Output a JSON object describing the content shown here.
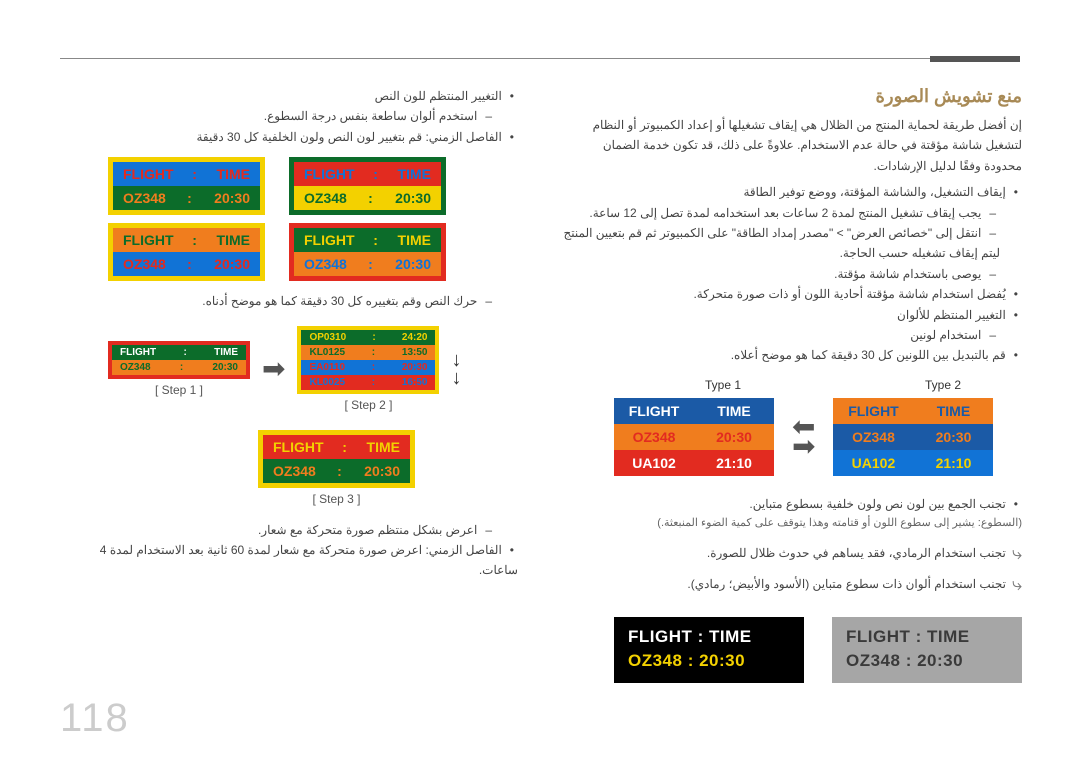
{
  "page_number": "118",
  "section_title": "منع تشويش الصورة",
  "intro": "إن أفضل طريقة لحماية المنتج من الظلال هي إيقاف تشغيلها أو إعداد الكمبيوتر أو النظام لتشغيل شاشة مؤقتة في حالة عدم الاستخدام. علاوةً على ذلك، قد تكون خدمة الضمان محدودة وفقًا لدليل الإرشادات.",
  "r_bullets": [
    "إيقاف التشغيل، والشاشة المؤقتة، ووضع توفير الطاقة",
    "يجب إيقاف تشغيل المنتج لمدة 2 ساعات بعد استخدامه لمدة تصل إلى 12 ساعة.",
    "انتقل إلى \"خصائص العرض\" > \"مصدر إمداد الطاقة\" على الكمبيوتر ثم قم بتعيين المنتج ليتم إيقاف تشغيله حسب الحاجة.",
    "يوصى باستخدام شاشة مؤقتة.",
    "يُفضل استخدام شاشة مؤقتة أحادية اللون أو ذات صورة متحركة.",
    "التغيير المنتظم للألوان",
    "استخدام لونين",
    "قم بالتبديل بين اللونين كل 30 دقيقة كما هو موضح أعلاه."
  ],
  "r_bullets_sub_flags": [
    false,
    true,
    true,
    true,
    false,
    false,
    true,
    false
  ],
  "type1_label": "Type 1",
  "type2_label": "Type 2",
  "colors": {
    "yellow": "#f3d100",
    "green_dark": "#0c6c2a",
    "orange": "#f07d1e",
    "red": "#e22b20",
    "blue_mid": "#1b5aa6",
    "blue_bright": "#1173d6",
    "blue_teal": "#1c7fb5",
    "black": "#000000",
    "white": "#ffffff",
    "gray": "#a6a6a6"
  },
  "table1": {
    "hdr_bg": "#1b5aa6",
    "hdr_txt": "#ffffff",
    "rows": [
      {
        "bg": "#f07d1e",
        "txt": "#e22b20",
        "c1": "OZ348",
        "c2": "20:30"
      },
      {
        "bg": "#e22b20",
        "txt": "#ffffff",
        "c1": "UA102",
        "c2": "21:10"
      }
    ]
  },
  "table2": {
    "hdr_bg": "#f07d1e",
    "hdr_txt": "#1b5aa6",
    "rows": [
      {
        "bg": "#1b5aa6",
        "txt": "#f07d1e",
        "c1": "OZ348",
        "c2": "20:30"
      },
      {
        "bg": "#1173d6",
        "txt": "#f3d100",
        "c1": "UA102",
        "c2": "21:10"
      }
    ]
  },
  "header_cells": {
    "c1": "FLIGHT",
    "c2": "TIME"
  },
  "bigblack": {
    "bg": "#000000",
    "txt1": "#ffffff",
    "txt2": "#f3d100",
    "l1": "FLIGHT   :   TIME",
    "l2": "OZ348   :   20:30"
  },
  "biggray": {
    "bg": "#a6a6a6",
    "txt": "#3a3a3a",
    "l1": "FLIGHT   :   TIME",
    "l2": "OZ348   :   20:30"
  },
  "note_after_types": "تجنب الجمع بين لون نص ولون خلفية بسطوع متباين.",
  "note_after_types2": "(السطوع: يشير إلى سطوع اللون أو قتامته وهذا يتوقف على كمية الضوء المنبعثة.)",
  "note_icons": [
    "تجنب استخدام الرمادي، فقد يساهم في حدوث ظلال للصورة.",
    "تجنب استخدام ألوان ذات سطوع متباين (الأسود والأبيض؛ رمادي)."
  ],
  "l_bullets": [
    "التغيير المنتظم للون النص",
    "استخدم ألوان ساطعة بنفس درجة السطوع.",
    "الفاصل الزمني: قم بتغيير لون النص ولون الخلفية كل 30 دقيقة"
  ],
  "l_bullets_sub_flags": [
    false,
    true,
    false
  ],
  "pairA": {
    "left": {
      "border": "#f3d100",
      "row1_bg": "#1173d6",
      "row1_txt": "#e22b20",
      "row2_bg": "#0c6c2a",
      "row2_txt": "#f07d1e"
    },
    "right": {
      "border": "#0c6c2a",
      "row1_bg": "#e22b20",
      "row1_txt": "#1173d6",
      "row2_bg": "#f3d100",
      "row2_txt": "#0c6c2a"
    }
  },
  "pairB": {
    "left": {
      "border": "#f3d100",
      "row1_bg": "#f07d1e",
      "row1_txt": "#0c6c2a",
      "row2_bg": "#1173d6",
      "row2_txt": "#e22b20"
    },
    "right": {
      "border": "#e22b20",
      "row1_bg": "#0c6c2a",
      "row1_txt": "#f3d100",
      "row2_bg": "#f07d1e",
      "row2_txt": "#1173d6"
    }
  },
  "flight_line": "FLIGHT   :   TIME",
  "oz_line": "OZ348   :   20:30",
  "l_mid_text": "حرك النص وقم بتغييره كل 30 دقيقة كما هو موضح أدناه.",
  "mini_left": {
    "border": "#e22b20",
    "row1_bg": "#0c6c2a",
    "row2_bg": "#f07d1e",
    "c1": "FLIGHT",
    "c2": "TIME",
    "d1": "OZ348",
    "d2": "20:30"
  },
  "mini_right_rows": [
    {
      "bg": "#0c6c2a",
      "txt": "#f3d100",
      "c1": "OP0310",
      "c2": "24:20"
    },
    {
      "bg": "#f07d1e",
      "txt": "#0c6c2a",
      "c1": "KL0125",
      "c2": "13:50"
    },
    {
      "bg": "#1173d6",
      "txt": "#e22b20",
      "c1": "EA0110",
      "c2": "20:30"
    },
    {
      "bg": "#e22b20",
      "txt": "#1173d6",
      "c1": "KL0025",
      "c2": "16:50"
    }
  ],
  "mini_right_border": "#f3d100",
  "step_labels": [
    "[ Step 1 ]",
    "[ Step 2 ]",
    "[ Step 3 ]"
  ],
  "step3card": {
    "border": "#f3d100",
    "row1_bg": "#e22b20",
    "row1_txt": "#f3d100",
    "row2_bg": "#0c6c2a",
    "row2_txt": "#f07d1e"
  },
  "l_bottom_bullets": [
    "اعرض بشكل منتظم صورة متحركة مع شعار.",
    "الفاصل الزمني: اعرض صورة متحركة مع شعار لمدة 60 ثانية بعد الاستخدام لمدة 4 ساعات."
  ],
  "l_bottom_sub_flags": [
    true,
    false
  ]
}
